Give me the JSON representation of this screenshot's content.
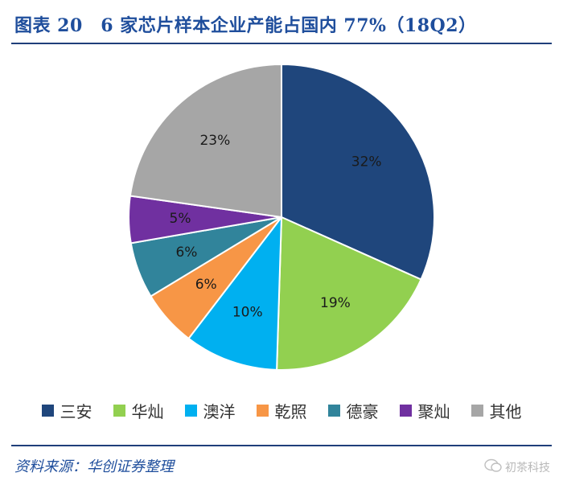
{
  "header": {
    "title": "图表 20　6 家芯片样本企业产能占国内 77%（18Q2）"
  },
  "footer": {
    "source": "资料来源：华创证券整理"
  },
  "watermark": {
    "text": "初茶科技"
  },
  "chart_data": {
    "type": "pie",
    "title": "图表 20　6 家芯片样本企业产能占国内 77%（18Q2）",
    "legend_position": "bottom",
    "slices": [
      {
        "label": "三安",
        "value": 32,
        "display": "32%",
        "color": "#1f467c"
      },
      {
        "label": "华灿",
        "value": 19,
        "display": "19%",
        "color": "#92d050"
      },
      {
        "label": "澳洋",
        "value": 10,
        "display": "10%",
        "color": "#00b0f0"
      },
      {
        "label": "乾照",
        "value": 6,
        "display": "6%",
        "color": "#f79646"
      },
      {
        "label": "德豪",
        "value": 6,
        "display": "6%",
        "color": "#31849b"
      },
      {
        "label": "聚灿",
        "value": 5,
        "display": "5%",
        "color": "#7030a0"
      },
      {
        "label": "其他",
        "value": 23,
        "display": "23%",
        "color": "#a6a6a6"
      }
    ]
  }
}
